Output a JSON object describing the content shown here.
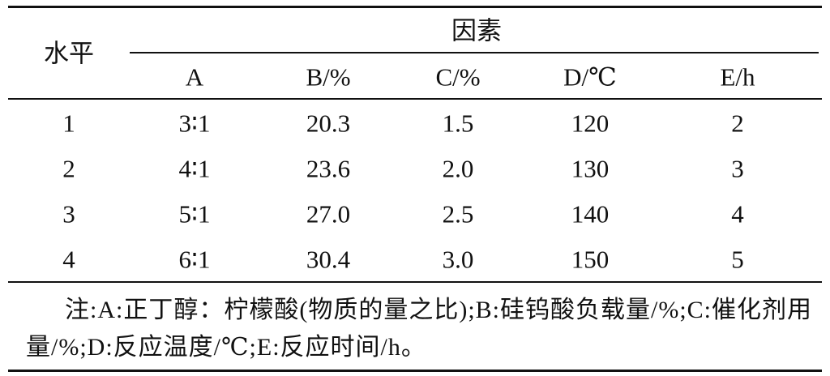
{
  "header": {
    "row_label": "水平",
    "group_label": "因素",
    "columns": [
      "A",
      "B/%",
      "C/%",
      "D/℃",
      "E/h"
    ]
  },
  "table": {
    "rows": [
      [
        "1",
        "3∶1",
        "20.3",
        "1.5",
        "120",
        "2"
      ],
      [
        "2",
        "4∶1",
        "23.6",
        "2.0",
        "130",
        "3"
      ],
      [
        "3",
        "5∶1",
        "27.0",
        "2.5",
        "140",
        "4"
      ],
      [
        "4",
        "6∶1",
        "30.4",
        "3.0",
        "150",
        "5"
      ]
    ]
  },
  "note": "注:A:正丁醇：柠檬酸(物质的量之比);B:硅钨酸负载量/%;C:催化剂用量/%;D:反应温度/℃;E:反应时间/h。"
}
